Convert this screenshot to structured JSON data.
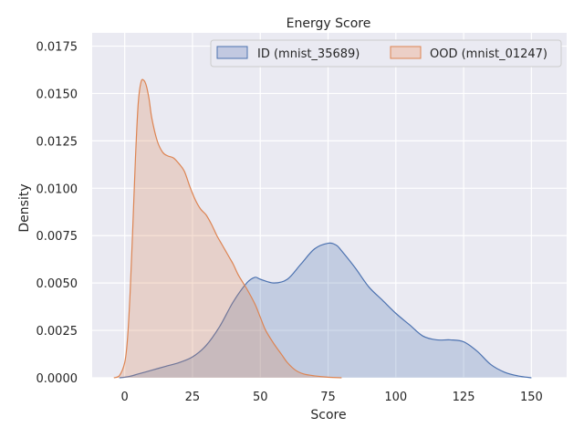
{
  "chart_data": {
    "type": "area",
    "title": "Energy Score",
    "xlabel": "Score",
    "ylabel": "Density",
    "xlim": [
      -12,
      163
    ],
    "ylim": [
      0,
      0.0182
    ],
    "xticks": [
      0,
      25,
      50,
      75,
      100,
      125,
      150
    ],
    "xtick_labels": [
      "0",
      "25",
      "50",
      "75",
      "100",
      "125",
      "150"
    ],
    "yticks": [
      0,
      0.0025,
      0.005,
      0.0075,
      0.01,
      0.0125,
      0.015,
      0.0175
    ],
    "ytick_labels": [
      "0.0000",
      "0.0025",
      "0.0050",
      "0.0075",
      "0.0100",
      "0.0125",
      "0.0150",
      "0.0175"
    ],
    "grid": true,
    "legend_position": "top-right",
    "series": [
      {
        "name": "ID (mnist_35689)",
        "line_color": "#4c72b0",
        "fill_color": "#c2c9e1",
        "x": [
          -2,
          0,
          2,
          5,
          10,
          15,
          20,
          25,
          30,
          35,
          40,
          45,
          48,
          50,
          55,
          60,
          65,
          70,
          75,
          78,
          80,
          85,
          90,
          95,
          100,
          105,
          110,
          115,
          120,
          125,
          130,
          135,
          140,
          145,
          150
        ],
        "y": [
          0,
          3e-05,
          8e-05,
          0.0002,
          0.0004,
          0.0006,
          0.0008,
          0.0011,
          0.0017,
          0.0027,
          0.004,
          0.005,
          0.0053,
          0.0052,
          0.005,
          0.0052,
          0.006,
          0.0068,
          0.0071,
          0.007,
          0.0067,
          0.0058,
          0.0048,
          0.0041,
          0.0034,
          0.0028,
          0.0022,
          0.002,
          0.002,
          0.0019,
          0.0014,
          0.0007,
          0.0003,
          0.0001,
          0
        ]
      },
      {
        "name": "OOD (mnist_01247)",
        "line_color": "#dd8452",
        "fill_color": "#eccfc6",
        "x": [
          -4,
          -2,
          0,
          1,
          2,
          3,
          4,
          5,
          6,
          7,
          8,
          9,
          10,
          12,
          14,
          16,
          18,
          20,
          22,
          24,
          26,
          28,
          30,
          32,
          34,
          36,
          38,
          40,
          42,
          45,
          48,
          50,
          52,
          55,
          58,
          60,
          63,
          66,
          70,
          75,
          80
        ],
        "y": [
          0,
          0.0001,
          0.0008,
          0.002,
          0.0045,
          0.008,
          0.0117,
          0.0145,
          0.0156,
          0.0157,
          0.0154,
          0.0147,
          0.0137,
          0.0125,
          0.0119,
          0.0117,
          0.0116,
          0.0113,
          0.0109,
          0.0101,
          0.0094,
          0.0089,
          0.0086,
          0.0081,
          0.0075,
          0.007,
          0.0065,
          0.006,
          0.0054,
          0.0047,
          0.0039,
          0.0032,
          0.0025,
          0.0018,
          0.0012,
          0.0008,
          0.0004,
          0.0002,
          0.0001,
          3e-05,
          0
        ]
      }
    ]
  }
}
